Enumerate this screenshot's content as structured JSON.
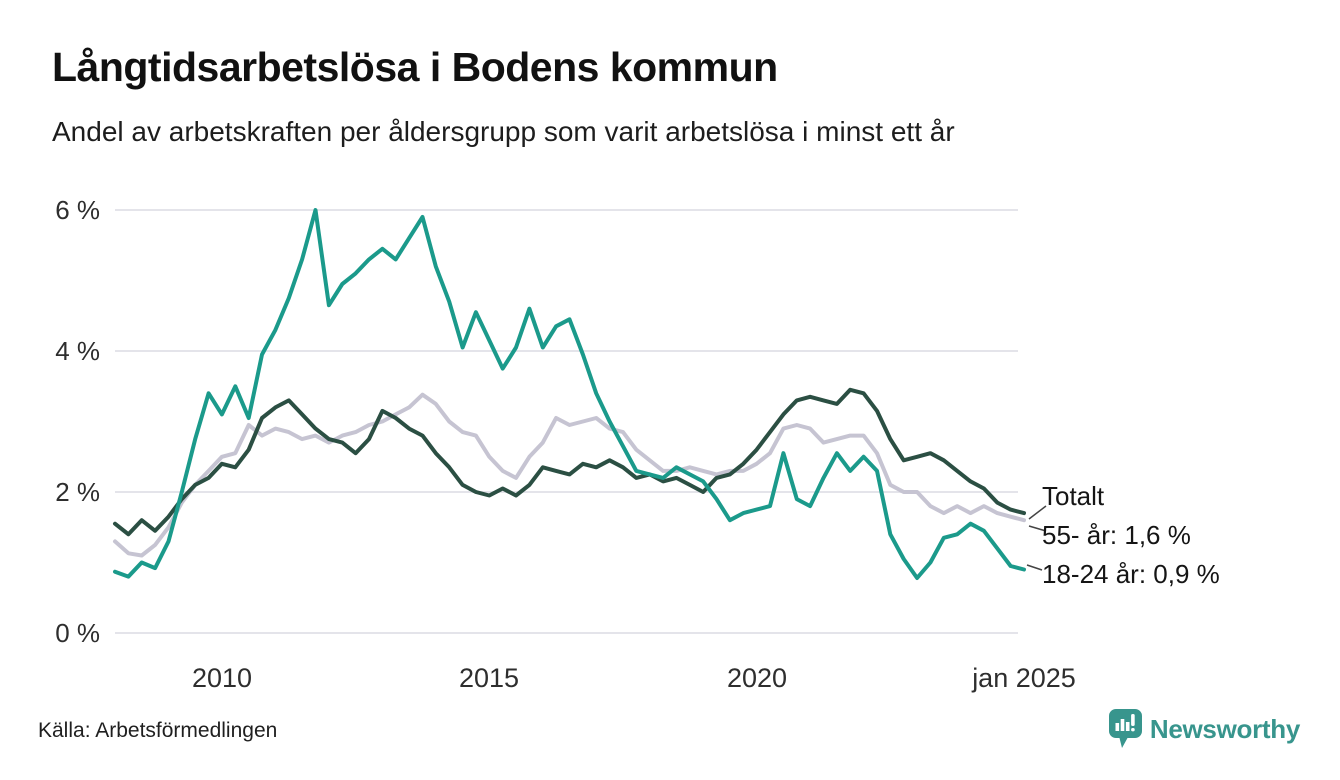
{
  "header": {
    "title": "Långtidsarbetslösa i Bodens kommun",
    "subtitle": "Andel av arbetskraften per åldersgrupp som varit arbetslösa i minst ett år"
  },
  "chart_data": {
    "type": "line",
    "title": "Långtidsarbetslösa i Bodens kommun",
    "subtitle": "Andel av arbetskraften per åldersgrupp som varit arbetslösa i minst ett år",
    "unit": "% av arbetskraften",
    "grid": "horizontal",
    "ylim": [
      0,
      6.5
    ],
    "ytick_values": [
      0,
      2,
      4,
      6
    ],
    "yticks": [
      "0 %",
      "2 %",
      "4 %",
      "6 %"
    ],
    "xtick_values": [
      2010,
      2015,
      2020,
      2025
    ],
    "xticks": [
      "2010",
      "2015",
      "2020",
      "jan 2025"
    ],
    "x": [
      2008,
      2008.25,
      2008.5,
      2008.75,
      2009,
      2009.25,
      2009.5,
      2009.75,
      2010,
      2010.25,
      2010.5,
      2010.75,
      2011,
      2011.25,
      2011.5,
      2011.75,
      2012,
      2012.25,
      2012.5,
      2012.75,
      2013,
      2013.25,
      2013.5,
      2013.75,
      2014,
      2014.25,
      2014.5,
      2014.75,
      2015,
      2015.25,
      2015.5,
      2015.75,
      2016,
      2016.25,
      2016.5,
      2016.75,
      2017,
      2017.25,
      2017.5,
      2017.75,
      2018,
      2018.25,
      2018.5,
      2018.75,
      2019,
      2019.25,
      2019.5,
      2019.75,
      2020,
      2020.25,
      2020.5,
      2020.75,
      2021,
      2021.25,
      2021.5,
      2021.75,
      2022,
      2022.25,
      2022.5,
      2022.75,
      2023,
      2023.25,
      2023.5,
      2023.75,
      2024,
      2024.25,
      2024.5,
      2024.75,
      2025
    ],
    "series": [
      {
        "name": "55- år",
        "color": "#c6c4d2",
        "latest_label": "55- år: 1,6 %",
        "latest_value": 1.6,
        "values": [
          1.3,
          1.13,
          1.1,
          1.25,
          1.5,
          1.85,
          2.1,
          2.3,
          2.5,
          2.55,
          2.95,
          2.8,
          2.9,
          2.85,
          2.75,
          2.8,
          2.7,
          2.8,
          2.85,
          2.95,
          3.0,
          3.1,
          3.2,
          3.38,
          3.25,
          3.0,
          2.85,
          2.8,
          2.5,
          2.3,
          2.2,
          2.5,
          2.7,
          3.05,
          2.95,
          3.0,
          3.05,
          2.9,
          2.85,
          2.6,
          2.45,
          2.3,
          2.3,
          2.35,
          2.3,
          2.25,
          2.3,
          2.3,
          2.4,
          2.55,
          2.9,
          2.95,
          2.9,
          2.7,
          2.75,
          2.8,
          2.8,
          2.55,
          2.1,
          2.0,
          2.0,
          1.8,
          1.7,
          1.8,
          1.7,
          1.8,
          1.7,
          1.65,
          1.6
        ]
      },
      {
        "name": "Totalt",
        "color": "#2b4f43",
        "latest_label": "Totalt",
        "latest_value": 1.7,
        "values": [
          1.55,
          1.4,
          1.6,
          1.45,
          1.65,
          1.9,
          2.1,
          2.2,
          2.4,
          2.35,
          2.6,
          3.05,
          3.2,
          3.3,
          3.1,
          2.9,
          2.75,
          2.7,
          2.55,
          2.75,
          3.15,
          3.05,
          2.9,
          2.8,
          2.55,
          2.35,
          2.1,
          2.0,
          1.95,
          2.05,
          1.95,
          2.1,
          2.35,
          2.3,
          2.25,
          2.4,
          2.35,
          2.45,
          2.35,
          2.2,
          2.25,
          2.15,
          2.2,
          2.1,
          2.0,
          2.2,
          2.25,
          2.4,
          2.6,
          2.85,
          3.1,
          3.3,
          3.35,
          3.3,
          3.25,
          3.45,
          3.4,
          3.15,
          2.75,
          2.45,
          2.5,
          2.55,
          2.45,
          2.3,
          2.15,
          2.05,
          1.85,
          1.75,
          1.7
        ]
      },
      {
        "name": "18-24 år",
        "color": "#1b9a8b",
        "latest_label": "18-24 år: 0,9 %",
        "latest_value": 0.9,
        "values": [
          0.87,
          0.8,
          1.0,
          0.92,
          1.3,
          2.0,
          2.75,
          3.4,
          3.1,
          3.5,
          3.05,
          3.95,
          4.3,
          4.75,
          5.3,
          6.0,
          4.65,
          4.95,
          5.1,
          5.3,
          5.45,
          5.3,
          5.6,
          5.9,
          5.2,
          4.7,
          4.05,
          4.55,
          4.15,
          3.75,
          4.05,
          4.6,
          4.05,
          4.35,
          4.45,
          3.95,
          3.4,
          3.0,
          2.65,
          2.3,
          2.25,
          2.2,
          2.35,
          2.25,
          2.15,
          1.9,
          1.6,
          1.7,
          1.75,
          1.8,
          2.55,
          1.9,
          1.8,
          2.2,
          2.55,
          2.3,
          2.5,
          2.3,
          1.4,
          1.05,
          0.78,
          1.0,
          1.35,
          1.4,
          1.55,
          1.45,
          1.2,
          0.95,
          0.9
        ]
      }
    ],
    "end_labels": [
      {
        "text": "Totalt"
      },
      {
        "text": "55- år: 1,6 %"
      },
      {
        "text": "18-24 år: 0,9 %"
      }
    ]
  },
  "footer": {
    "source": "Källa: Arbetsförmedlingen",
    "brand": "Newsworthy"
  },
  "colors": {
    "accent_teal": "#1b9a8b",
    "dark_green": "#2b4f43",
    "light_gray_purple": "#c6c4d2",
    "gridline": "#e4e4ea",
    "brand_teal": "#38958d"
  }
}
